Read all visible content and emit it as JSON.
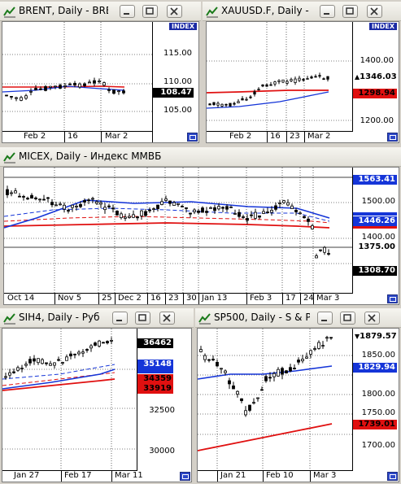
{
  "windows": [
    {
      "title": "BRENT, Daily - BRE",
      "scale_tag": "INDEX",
      "price_labels": [
        "115.00",
        "110.00",
        "105.00"
      ],
      "current_boxes": [
        {
          "text": "108.47",
          "bg": "#000000",
          "fg": "#ffffff"
        }
      ],
      "x_labels": [
        "Feb 2",
        "16",
        "Mar 2"
      ]
    },
    {
      "title": "XAUUSD.F, Daily - ",
      "scale_tag": "INDEX",
      "price_labels": [
        "1400.00",
        "1200.00"
      ],
      "current_boxes": [
        {
          "text": "1346.03",
          "bg": "#ffffff",
          "fg": "#000000",
          "marker": "▲"
        },
        {
          "text": "1298.94",
          "bg": "#e01010",
          "fg": "#000000"
        }
      ],
      "x_labels": [
        "Feb 2",
        "16",
        "23",
        "Mar 2"
      ]
    },
    {
      "title": "MICEX, Daily - Индекс ММВБ",
      "price_labels": [
        "1500.00",
        "1400.00"
      ],
      "current_boxes": [
        {
          "text": "1563.41",
          "bg": "#1535d8",
          "fg": "#ffffff"
        },
        {
          "text": "1446.26",
          "bg": "#1535d8",
          "fg": "#ffffff"
        },
        {
          "text": "1375.00",
          "bg": "#ffffff",
          "fg": "#000000"
        },
        {
          "text": "1308.70",
          "bg": "#000000",
          "fg": "#ffffff"
        }
      ],
      "x_labels": [
        "Oct 14",
        "Nov 5",
        "25",
        "Dec 2",
        "16",
        "23",
        "30",
        "Jan 13",
        "Feb 3",
        "17",
        "24",
        "Mar 3"
      ]
    },
    {
      "title": "SIH4, Daily - Руб",
      "price_labels": [
        "32500",
        "30000"
      ],
      "current_boxes": [
        {
          "text": "36462",
          "bg": "#000000",
          "fg": "#ffffff"
        },
        {
          "text": "35148",
          "bg": "#1535d8",
          "fg": "#ffffff"
        },
        {
          "text": "34359",
          "bg": "#e01010",
          "fg": "#000000"
        },
        {
          "text": "33919",
          "bg": "#e01010",
          "fg": "#000000"
        }
      ],
      "x_labels": [
        "Jan 27",
        "Feb 17",
        "Mar 11"
      ]
    },
    {
      "title": "SP500, Daily - S & P 5",
      "price_labels": [
        "1850.00",
        "1800.00",
        "1750.00",
        "1700.00"
      ],
      "current_boxes": [
        {
          "text": "1879.57",
          "bg": "#ffffff",
          "fg": "#000000",
          "marker": "▼"
        },
        {
          "text": "1829.94",
          "bg": "#1535d8",
          "fg": "#ffffff"
        },
        {
          "text": "1739.01",
          "bg": "#e01010",
          "fg": "#000000"
        }
      ],
      "x_labels": [
        "Jan 21",
        "Feb 10",
        "Mar 3"
      ]
    }
  ]
}
